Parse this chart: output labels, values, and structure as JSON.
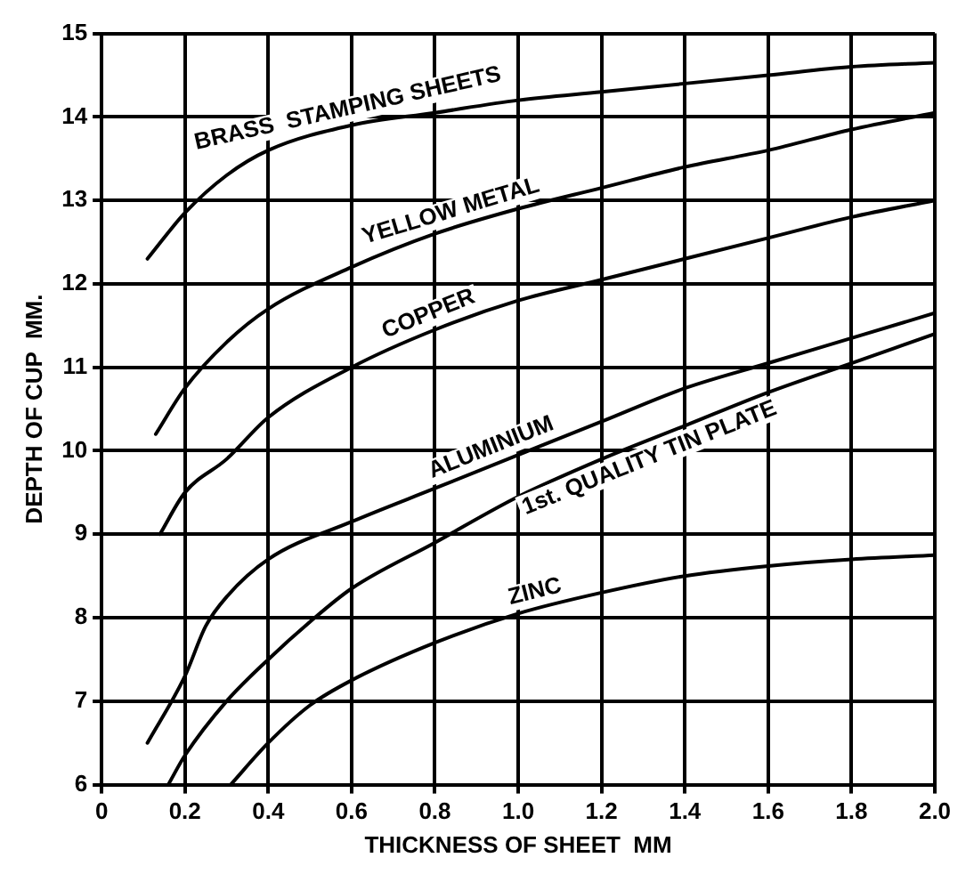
{
  "chart_data": {
    "type": "line",
    "xlabel": "THICKNESS OF SHEET  MM",
    "ylabel": "DEPTH OF CUP  MM.",
    "xlim": [
      0,
      2
    ],
    "ylim": [
      6,
      15
    ],
    "xticks": [
      0,
      0.2,
      0.4,
      0.6,
      0.8,
      {
        "value": 1,
        "label": "1.0"
      },
      1.2,
      1.4,
      1.6,
      1.8,
      {
        "value": 2,
        "label": "2.0"
      }
    ],
    "yticks": [
      6,
      7,
      8,
      9,
      10,
      11,
      12,
      13,
      14,
      15
    ],
    "grid": true,
    "legend": false,
    "marker": "none",
    "line_style": "solid",
    "series": [
      {
        "name": "BRASS  STAMPING SHEETS",
        "color": "#000000",
        "x": [
          0.11,
          0.2,
          0.3,
          0.4,
          0.6,
          0.8,
          1.0,
          1.2,
          1.4,
          1.6,
          1.8,
          2.0
        ],
        "values": [
          12.3,
          12.85,
          13.3,
          13.6,
          13.9,
          14.05,
          14.2,
          14.3,
          14.4,
          14.5,
          14.6,
          14.65
        ]
      },
      {
        "name": "YELLOW METAL",
        "color": "#000000",
        "x": [
          0.13,
          0.2,
          0.3,
          0.4,
          0.6,
          0.8,
          1.0,
          1.2,
          1.4,
          1.6,
          1.8,
          2.0
        ],
        "values": [
          10.2,
          10.75,
          11.3,
          11.7,
          12.2,
          12.6,
          12.9,
          13.15,
          13.4,
          13.6,
          13.85,
          14.05
        ]
      },
      {
        "name": "COPPER",
        "color": "#000000",
        "x": [
          0.14,
          0.2,
          0.3,
          0.4,
          0.6,
          0.8,
          1.0,
          1.2,
          1.4,
          1.6,
          1.8,
          2.0
        ],
        "values": [
          9.0,
          9.5,
          9.9,
          10.4,
          11.0,
          11.45,
          11.8,
          12.05,
          12.3,
          12.55,
          12.8,
          13.0
        ]
      },
      {
        "name": "ALUMINIUM",
        "color": "#000000",
        "x": [
          0.11,
          0.2,
          0.25,
          0.3,
          0.4,
          0.6,
          0.8,
          1.0,
          1.2,
          1.4,
          1.6,
          1.8,
          2.0
        ],
        "values": [
          6.5,
          7.3,
          7.9,
          8.25,
          8.7,
          9.15,
          9.55,
          9.95,
          10.35,
          10.75,
          11.05,
          11.35,
          11.65
        ]
      },
      {
        "name": "1st. QUALITY TIN PLATE",
        "color": "#000000",
        "x": [
          0.16,
          0.2,
          0.3,
          0.4,
          0.5,
          0.6,
          0.8,
          1.0,
          1.2,
          1.4,
          1.6,
          1.8,
          2.0
        ],
        "values": [
          6.0,
          6.35,
          7.0,
          7.5,
          7.95,
          8.35,
          8.9,
          9.45,
          9.9,
          10.3,
          10.7,
          11.05,
          11.4
        ]
      },
      {
        "name": "ZINC",
        "color": "#000000",
        "x": [
          0.31,
          0.4,
          0.5,
          0.6,
          0.8,
          1.0,
          1.2,
          1.4,
          1.6,
          1.8,
          2.0
        ],
        "values": [
          6.0,
          6.5,
          6.95,
          7.25,
          7.7,
          8.05,
          8.3,
          8.5,
          8.62,
          8.7,
          8.75
        ]
      }
    ]
  }
}
